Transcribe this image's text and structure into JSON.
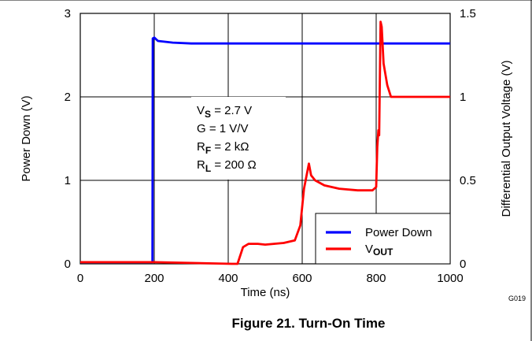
{
  "figure_caption": "Figure 21. Turn-On Time",
  "figure_code": "G019",
  "chart_data": {
    "type": "line",
    "title": "",
    "xlabel": "Time (ns)",
    "ylabel_left": "Power Down (V)",
    "ylabel_right": "Differential Output Voltage (V)",
    "xlim": [
      0,
      1000
    ],
    "ylim_left": [
      0,
      3
    ],
    "ylim_right": [
      0,
      1.5
    ],
    "x_ticks": [
      "0",
      "200",
      "400",
      "600",
      "800",
      "1000"
    ],
    "y_ticks_left": [
      "0",
      "1",
      "2",
      "3"
    ],
    "y_ticks_right": [
      "0",
      "0.5",
      "1",
      "1.5"
    ],
    "grid": true,
    "legend_position": "bottom-right",
    "annotation": [
      {
        "base": "V",
        "sub": "S",
        "rest": " = 2.7 V"
      },
      {
        "base": "G",
        "sub": "",
        "rest": " = 1 V/V"
      },
      {
        "base": "R",
        "sub": "F",
        "rest": " = 2 kΩ"
      },
      {
        "base": "R",
        "sub": "L",
        "rest": " = 200 Ω"
      }
    ],
    "series": [
      {
        "name": "Power Down",
        "axis": "left",
        "color": "#0000ff",
        "points": [
          [
            0,
            0.02
          ],
          [
            195,
            0.02
          ],
          [
            196,
            2.7
          ],
          [
            200,
            2.71
          ],
          [
            210,
            2.67
          ],
          [
            250,
            2.65
          ],
          [
            300,
            2.64
          ],
          [
            400,
            2.64
          ],
          [
            500,
            2.64
          ],
          [
            600,
            2.64
          ],
          [
            700,
            2.64
          ],
          [
            800,
            2.64
          ],
          [
            900,
            2.64
          ],
          [
            1000,
            2.64
          ]
        ]
      },
      {
        "name_base": "V",
        "name_sub": "OUT",
        "axis": "right",
        "color": "#ff0000",
        "points": [
          [
            0,
            0.01
          ],
          [
            200,
            0.01
          ],
          [
            300,
            0.005
          ],
          [
            410,
            0.0
          ],
          [
            425,
            0.0
          ],
          [
            440,
            0.1
          ],
          [
            455,
            0.12
          ],
          [
            480,
            0.12
          ],
          [
            500,
            0.115
          ],
          [
            550,
            0.125
          ],
          [
            580,
            0.14
          ],
          [
            595,
            0.23
          ],
          [
            605,
            0.45
          ],
          [
            612,
            0.53
          ],
          [
            618,
            0.6
          ],
          [
            624,
            0.53
          ],
          [
            635,
            0.5
          ],
          [
            660,
            0.47
          ],
          [
            700,
            0.45
          ],
          [
            750,
            0.44
          ],
          [
            790,
            0.44
          ],
          [
            800,
            0.46
          ],
          [
            803,
            0.7
          ],
          [
            806,
            0.8
          ],
          [
            808,
            0.77
          ],
          [
            812,
            1.45
          ],
          [
            815,
            1.42
          ],
          [
            820,
            1.2
          ],
          [
            830,
            1.07
          ],
          [
            840,
            1.0
          ],
          [
            860,
            1.0
          ],
          [
            900,
            1.0
          ],
          [
            1000,
            1.0
          ]
        ]
      }
    ]
  }
}
